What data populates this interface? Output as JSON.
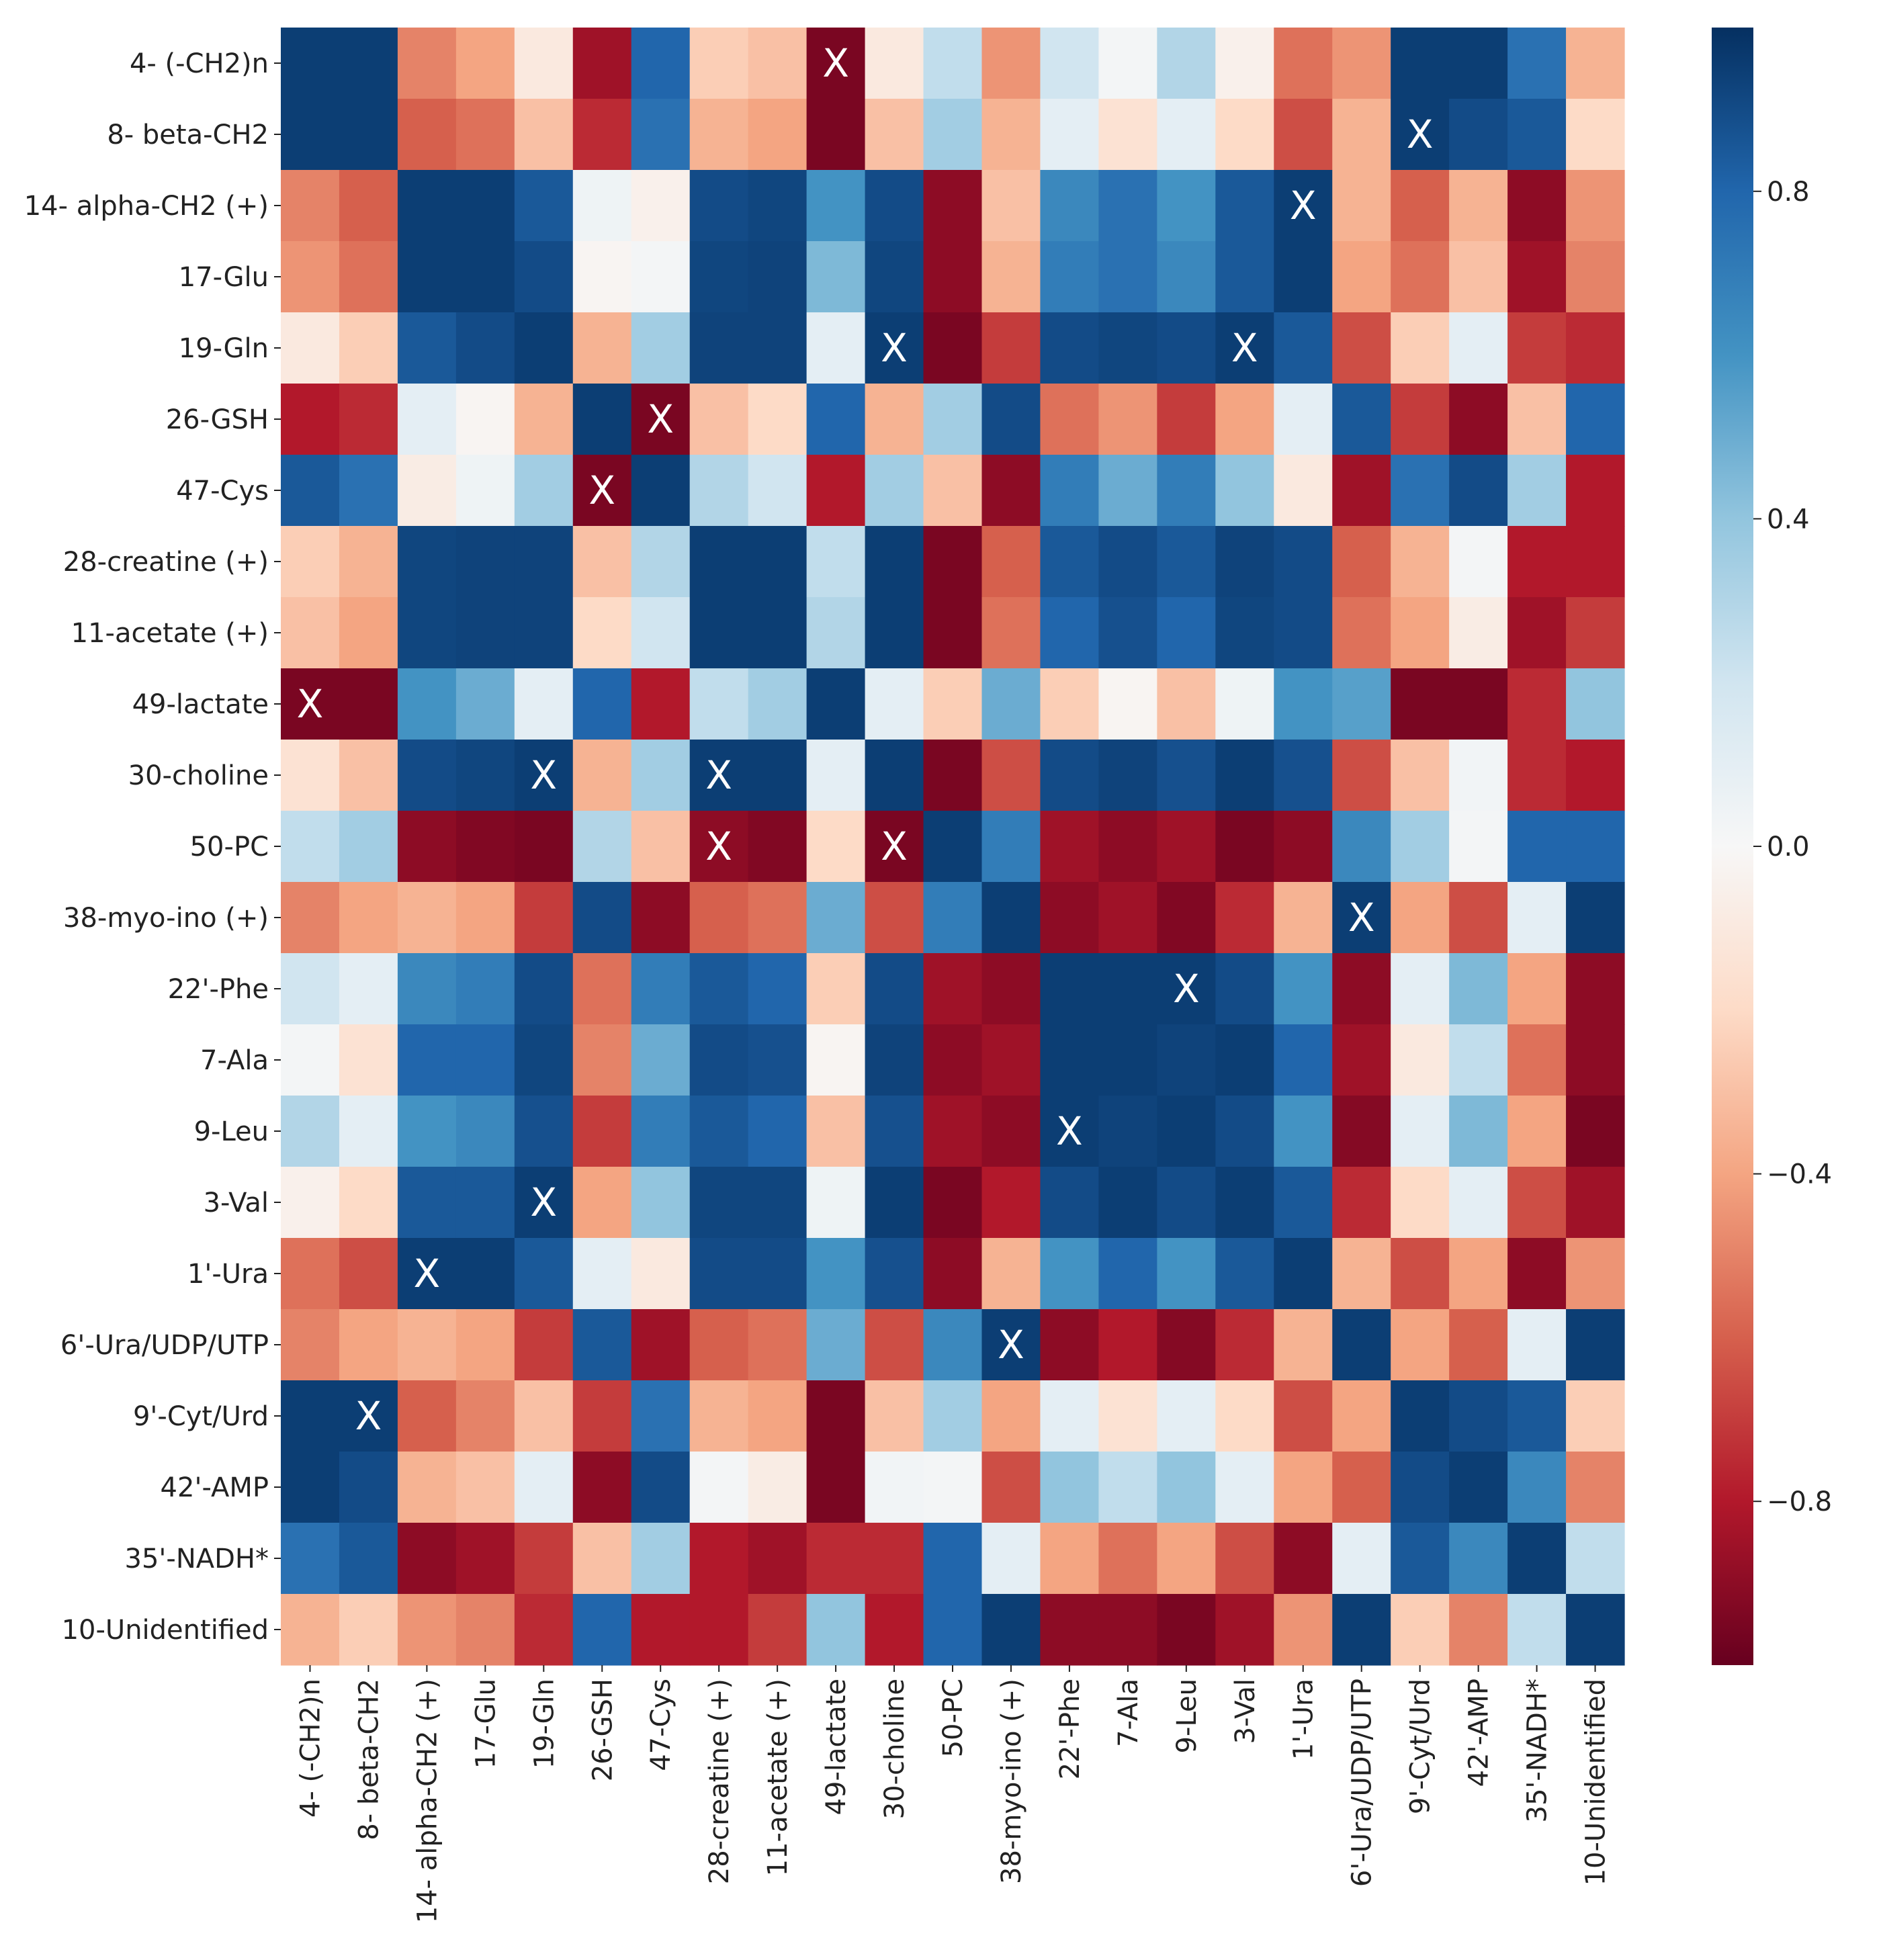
{
  "chart_data": {
    "type": "heatmap",
    "title": "",
    "colormap": "RdBu",
    "colormap_stops": [
      "#67001f",
      "#b2182b",
      "#d6604d",
      "#f4a582",
      "#fddbc7",
      "#f7f7f7",
      "#d1e5f0",
      "#92c5de",
      "#4393c3",
      "#2166ac",
      "#053061"
    ],
    "vmin": -1.0,
    "vmax": 1.0,
    "colorbar_ticks": [
      0.8,
      0.4,
      0.0,
      -0.4,
      -0.8
    ],
    "colorbar_tick_labels": [
      "0.8",
      "0.4",
      "0.0",
      "−0.4",
      "−0.8"
    ],
    "marker_text": "X",
    "labels": [
      "4- (-CH2)n",
      "8- beta-CH2",
      "14- alpha-CH2 (+)",
      "17-Glu",
      "19-Gln",
      "26-GSH",
      "47-Cys",
      "28-creatine (+)",
      "11-acetate (+)",
      "49-lactate",
      "30-choline",
      "50-PC",
      "38-myo-ino (+)",
      "22'-Phe",
      "7-Ala",
      "9-Leu",
      "3-Val",
      "1'-Ura",
      "6'-Ura/UDP/UTP",
      "9'-Cyt/Urd",
      "42'-AMP",
      "35'-NADH*",
      "10-Unidentified"
    ],
    "values": [
      [
        0.95,
        0.95,
        -0.5,
        -0.4,
        -0.1,
        -0.85,
        0.8,
        -0.25,
        -0.3,
        -0.95,
        -0.1,
        0.25,
        -0.45,
        0.2,
        0.02,
        0.3,
        -0.05,
        -0.55,
        -0.45,
        0.95,
        0.95,
        0.75,
        -0.35
      ],
      [
        0.95,
        0.95,
        -0.6,
        -0.55,
        -0.3,
        -0.75,
        0.75,
        -0.35,
        -0.4,
        -0.95,
        -0.3,
        0.35,
        -0.35,
        0.1,
        -0.15,
        0.1,
        -0.2,
        -0.65,
        -0.35,
        0.95,
        0.9,
        0.85,
        -0.2
      ],
      [
        -0.5,
        -0.6,
        0.95,
        0.95,
        0.85,
        0.05,
        -0.05,
        0.9,
        0.92,
        0.6,
        0.9,
        -0.9,
        -0.3,
        0.65,
        0.75,
        0.6,
        0.85,
        0.95,
        -0.35,
        -0.6,
        -0.35,
        -0.9,
        -0.45
      ],
      [
        -0.45,
        -0.55,
        0.95,
        0.95,
        0.9,
        -0.02,
        0.02,
        0.92,
        0.93,
        0.45,
        0.92,
        -0.9,
        -0.35,
        0.7,
        0.75,
        0.65,
        0.85,
        0.95,
        -0.4,
        -0.55,
        -0.3,
        -0.85,
        -0.5
      ],
      [
        -0.1,
        -0.25,
        0.85,
        0.9,
        0.95,
        -0.35,
        0.35,
        0.93,
        0.93,
        0.1,
        0.95,
        -0.95,
        -0.7,
        0.9,
        0.92,
        0.9,
        0.95,
        0.85,
        -0.65,
        -0.25,
        0.1,
        -0.7,
        -0.75
      ],
      [
        -0.8,
        -0.75,
        0.1,
        -0.02,
        -0.35,
        0.95,
        -0.95,
        -0.3,
        -0.2,
        0.8,
        -0.35,
        0.35,
        0.9,
        -0.55,
        -0.45,
        -0.7,
        -0.4,
        0.1,
        0.85,
        -0.7,
        -0.9,
        -0.3,
        0.8
      ],
      [
        0.85,
        0.75,
        -0.08,
        0.05,
        0.35,
        -0.95,
        0.95,
        0.3,
        0.2,
        -0.8,
        0.35,
        -0.3,
        -0.9,
        0.7,
        0.5,
        0.7,
        0.4,
        -0.1,
        -0.85,
        0.75,
        0.9,
        0.35,
        -0.8
      ],
      [
        -0.25,
        -0.35,
        0.92,
        0.93,
        0.93,
        -0.3,
        0.3,
        0.95,
        0.95,
        0.25,
        0.95,
        -0.95,
        -0.6,
        0.85,
        0.9,
        0.85,
        0.93,
        0.9,
        -0.6,
        -0.35,
        0.02,
        -0.8,
        -0.8
      ],
      [
        -0.3,
        -0.4,
        0.92,
        0.93,
        0.93,
        -0.2,
        0.2,
        0.95,
        0.95,
        0.3,
        0.95,
        -0.95,
        -0.55,
        0.8,
        0.88,
        0.8,
        0.92,
        0.9,
        -0.55,
        -0.4,
        -0.08,
        -0.85,
        -0.7
      ],
      [
        -0.95,
        -0.95,
        0.6,
        0.5,
        0.1,
        0.8,
        -0.8,
        0.25,
        0.35,
        0.95,
        0.1,
        -0.25,
        0.5,
        -0.25,
        -0.02,
        -0.3,
        0.05,
        0.6,
        0.55,
        -0.95,
        -0.95,
        -0.75,
        0.4
      ],
      [
        -0.15,
        -0.3,
        0.9,
        0.92,
        0.95,
        -0.35,
        0.35,
        0.95,
        0.95,
        0.1,
        0.95,
        -0.95,
        -0.65,
        0.9,
        0.93,
        0.88,
        0.95,
        0.88,
        -0.65,
        -0.3,
        0.03,
        -0.75,
        -0.8
      ],
      [
        0.25,
        0.35,
        -0.9,
        -0.93,
        -0.95,
        0.3,
        -0.3,
        -0.9,
        -0.93,
        -0.2,
        -0.95,
        0.95,
        0.7,
        -0.85,
        -0.9,
        -0.85,
        -0.95,
        -0.9,
        0.65,
        0.35,
        0.02,
        0.8,
        0.8
      ],
      [
        -0.5,
        -0.4,
        -0.35,
        -0.4,
        -0.7,
        0.9,
        -0.9,
        -0.6,
        -0.55,
        0.5,
        -0.65,
        0.7,
        0.95,
        -0.9,
        -0.85,
        -0.93,
        -0.75,
        -0.35,
        0.95,
        -0.4,
        -0.65,
        0.1,
        0.95
      ],
      [
        0.2,
        0.1,
        0.65,
        0.7,
        0.9,
        -0.55,
        0.7,
        0.85,
        0.8,
        -0.25,
        0.9,
        -0.85,
        -0.9,
        0.95,
        0.95,
        0.95,
        0.9,
        0.6,
        -0.9,
        0.1,
        0.45,
        -0.4,
        -0.9
      ],
      [
        0.02,
        -0.15,
        0.8,
        0.8,
        0.92,
        -0.5,
        0.5,
        0.9,
        0.88,
        -0.02,
        0.93,
        -0.9,
        -0.85,
        0.95,
        0.95,
        0.93,
        0.95,
        0.8,
        -0.85,
        -0.1,
        0.25,
        -0.55,
        -0.9
      ],
      [
        0.3,
        0.1,
        0.6,
        0.65,
        0.88,
        -0.7,
        0.7,
        0.85,
        0.8,
        -0.3,
        0.88,
        -0.85,
        -0.9,
        0.95,
        0.93,
        0.95,
        0.9,
        0.6,
        -0.92,
        0.1,
        0.45,
        -0.4,
        -0.95
      ],
      [
        -0.05,
        -0.2,
        0.85,
        0.85,
        0.95,
        -0.4,
        0.4,
        0.92,
        0.92,
        0.05,
        0.95,
        -0.95,
        -0.8,
        0.9,
        0.95,
        0.9,
        0.95,
        0.85,
        -0.75,
        -0.2,
        0.1,
        -0.65,
        -0.85
      ],
      [
        -0.55,
        -0.65,
        0.95,
        0.95,
        0.85,
        0.1,
        -0.1,
        0.9,
        0.9,
        0.6,
        0.88,
        -0.9,
        -0.35,
        0.6,
        0.8,
        0.6,
        0.85,
        0.95,
        -0.35,
        -0.65,
        -0.4,
        -0.9,
        -0.45
      ],
      [
        -0.5,
        -0.4,
        -0.35,
        -0.4,
        -0.7,
        0.85,
        -0.85,
        -0.6,
        -0.55,
        0.5,
        -0.65,
        0.65,
        0.95,
        -0.9,
        -0.8,
        -0.92,
        -0.75,
        -0.35,
        0.95,
        -0.4,
        -0.6,
        0.1,
        0.95
      ],
      [
        0.95,
        0.95,
        -0.6,
        -0.5,
        -0.3,
        -0.7,
        0.75,
        -0.35,
        -0.4,
        -0.95,
        -0.3,
        0.35,
        -0.4,
        0.1,
        -0.15,
        0.1,
        -0.2,
        -0.65,
        -0.4,
        0.95,
        0.9,
        0.85,
        -0.25
      ],
      [
        0.95,
        0.9,
        -0.35,
        -0.3,
        0.1,
        -0.9,
        0.9,
        0.02,
        -0.08,
        -0.95,
        0.03,
        0.02,
        -0.65,
        0.4,
        0.25,
        0.4,
        0.1,
        -0.4,
        -0.6,
        0.9,
        0.95,
        0.65,
        -0.5
      ],
      [
        0.75,
        0.85,
        -0.9,
        -0.85,
        -0.7,
        -0.3,
        0.35,
        -0.8,
        -0.85,
        -0.75,
        -0.75,
        0.8,
        0.1,
        -0.4,
        -0.55,
        -0.4,
        -0.65,
        -0.9,
        0.1,
        0.85,
        0.65,
        0.95,
        0.25
      ],
      [
        -0.35,
        -0.25,
        -0.45,
        -0.5,
        -0.75,
        0.8,
        -0.8,
        -0.8,
        -0.7,
        0.4,
        -0.8,
        0.8,
        0.95,
        -0.9,
        -0.9,
        -0.95,
        -0.85,
        -0.45,
        0.95,
        -0.25,
        -0.5,
        0.25,
        0.95
      ]
    ],
    "x_marks": [
      [
        0,
        9
      ],
      [
        1,
        19
      ],
      [
        2,
        17
      ],
      [
        4,
        10
      ],
      [
        4,
        16
      ],
      [
        5,
        6
      ],
      [
        6,
        5
      ],
      [
        9,
        0
      ],
      [
        10,
        4
      ],
      [
        10,
        7
      ],
      [
        11,
        7
      ],
      [
        11,
        10
      ],
      [
        12,
        18
      ],
      [
        13,
        15
      ],
      [
        15,
        13
      ],
      [
        16,
        4
      ],
      [
        17,
        2
      ],
      [
        18,
        12
      ],
      [
        19,
        1
      ]
    ]
  }
}
